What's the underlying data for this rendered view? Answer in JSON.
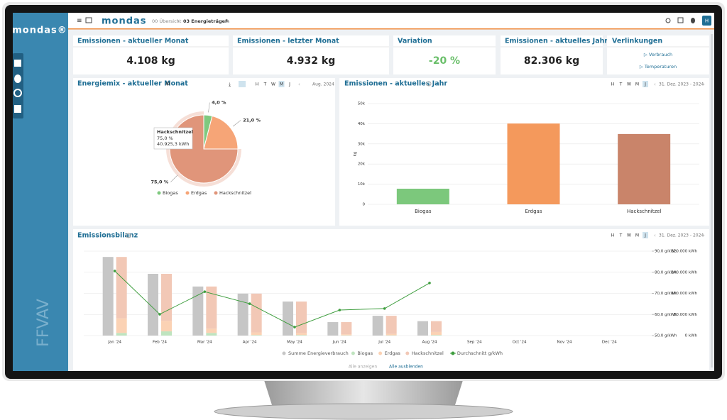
{
  "app": {
    "logo": "mondas®",
    "brand": "mondas",
    "site": "FFVAV",
    "breadcrumb": [
      "00 Übersicht",
      "03 Energieträger"
    ],
    "user": "H",
    "periods": [
      "H",
      "T",
      "W",
      "M",
      "J"
    ]
  },
  "kpis": [
    {
      "title": "Emissionen - aktueller Monat",
      "value": "4.108 kg"
    },
    {
      "title": "Emissionen - letzter Monat",
      "value": "4.932 kg"
    },
    {
      "title": "Variation",
      "value": "-20 %"
    },
    {
      "title": "Emissionen - aktuelles Jahr",
      "value": "82.306 kg"
    }
  ],
  "links": {
    "title": "Verlinkungen",
    "items": [
      "▷ Verbrauch",
      "▷ Temperaturen"
    ]
  },
  "chart_data": [
    {
      "type": "pie",
      "title": "Energiemix - aktueller Monat",
      "range": "Aug. 2024",
      "categories": [
        "Biogas",
        "Erdgas",
        "Hackschnitzel"
      ],
      "values": [
        4.0,
        21.0,
        75.0
      ],
      "value_labels": [
        "4,0 %",
        "21,0 %",
        "75,0 %"
      ],
      "colors": [
        "#7fc97f",
        "#f6a577",
        "#e0957a"
      ],
      "tooltip": {
        "title": "Hackschnitzel",
        "lines": [
          "75,0 %",
          "40.925,3 kWh"
        ]
      }
    },
    {
      "type": "bar",
      "title": "Emissionen - aktuelles Jahr",
      "range": "31. Dez. 2023 - 2024",
      "ylabel": "kg",
      "categories": [
        "Biogas",
        "Erdgas",
        "Hackschnitzel"
      ],
      "values": [
        7750,
        40100,
        34900
      ],
      "colors": [
        "#7cc87c",
        "#f4995c",
        "#c9846a"
      ],
      "ylim": [
        0,
        50000
      ],
      "yticks": [
        0,
        {
          "value": 10000,
          "label": "10k"
        },
        {
          "value": 20000,
          "label": "20k"
        },
        {
          "value": 30000,
          "label": "30k"
        },
        {
          "value": 40000,
          "label": "40k"
        },
        {
          "value": 50000,
          "label": "50k"
        }
      ],
      "grid": true
    },
    {
      "type": "combo",
      "title": "Emissionsbilanz",
      "range": "31. Dez. 2023 - 2024",
      "categories": [
        "Jan '24",
        "Feb '24",
        "Mar '24",
        "Apr '24",
        "May '24",
        "Jun '24",
        "Jul '24",
        "Aug '24",
        "Sep '24",
        "Oct '24",
        "Nov '24",
        "Dec '24"
      ],
      "series": [
        {
          "name": "Summe Energieverbrauch",
          "type": "bar",
          "color": "#c6c6c6",
          "values": [
            298000,
            234000,
            186000,
            159000,
            129000,
            51000,
            75000,
            54600,
            null,
            null,
            null,
            null
          ]
        },
        {
          "name": "Biogas",
          "type": "bar",
          "stack": "fuel",
          "color": "#bfe4bf",
          "values": [
            10000,
            16000,
            10000,
            2000,
            2000,
            1000,
            1000,
            2200,
            null,
            null,
            null,
            null
          ]
        },
        {
          "name": "Erdgas",
          "type": "bar",
          "stack": "fuel",
          "color": "#fbd2b4",
          "values": [
            55000,
            40000,
            16000,
            10000,
            8000,
            4000,
            5000,
            11500,
            null,
            null,
            null,
            null
          ]
        },
        {
          "name": "Hackschnitzel",
          "type": "bar",
          "stack": "fuel",
          "color": "#f2c8b6",
          "values": [
            233000,
            178000,
            160000,
            147000,
            119000,
            46000,
            69000,
            40900,
            null,
            null,
            null,
            null
          ]
        },
        {
          "name": "Durchschnitt g/kWh",
          "type": "line",
          "axis": "y2",
          "color": "#3f9e3f",
          "values": [
            80.6,
            60.1,
            70.8,
            65.1,
            54.0,
            62.1,
            62.8,
            74.9,
            null,
            null,
            null,
            null
          ]
        }
      ],
      "ylim": [
        0,
        320000
      ],
      "yticks": [
        {
          "value": 0,
          "label": "0 kWh"
        },
        {
          "value": 80000,
          "label": "80.000 kWh"
        },
        {
          "value": 160000,
          "label": "160.000 kWh"
        },
        {
          "value": 240000,
          "label": "240.000 kWh"
        },
        {
          "value": 320000,
          "label": "320.000 kWh"
        }
      ],
      "y2lim": [
        50,
        90
      ],
      "y2ticks": [
        {
          "value": 50,
          "label": "50,0 g/kWh"
        },
        {
          "value": 60,
          "label": "60,0 g/kWh"
        },
        {
          "value": 70,
          "label": "70,0 g/kWh"
        },
        {
          "value": 80,
          "label": "80,0 g/kWh"
        },
        {
          "value": 90,
          "label": "90,0 g/kWh"
        }
      ],
      "grid": true,
      "legend_actions": [
        "Alle anzeigen",
        "Alle ausblenden"
      ]
    }
  ]
}
